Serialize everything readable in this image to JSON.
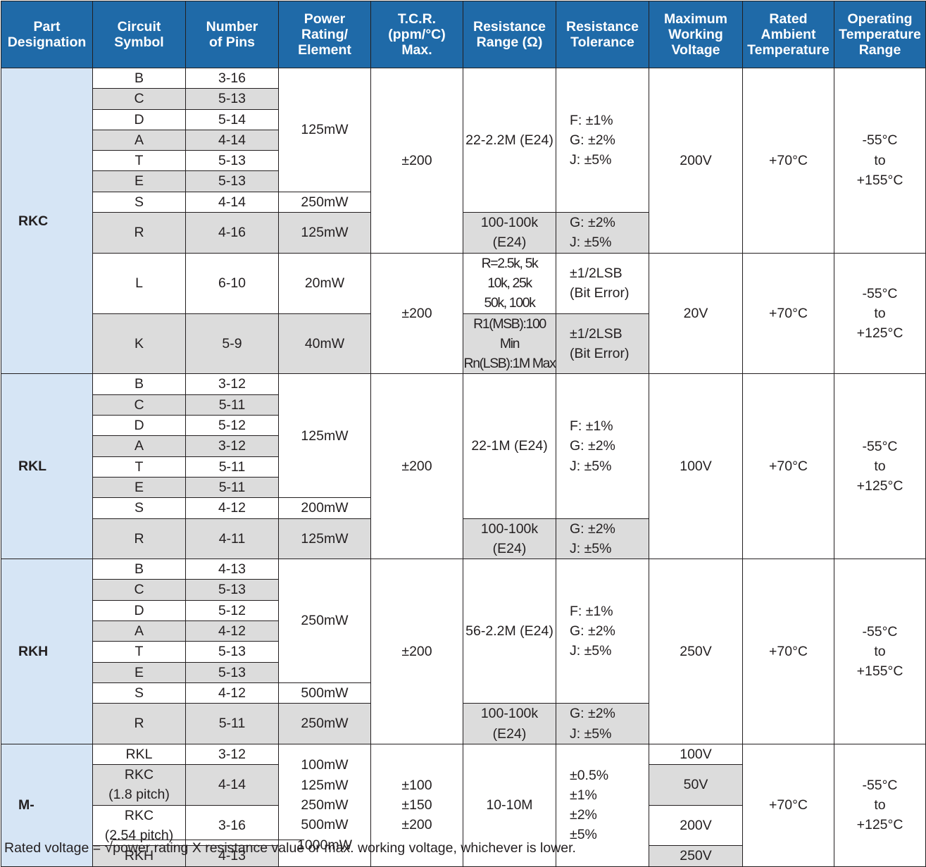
{
  "headers": [
    "Part\nDesignation",
    "Circuit\nSymbol",
    "Number\nof Pins",
    "Power\nRating/\nElement",
    "T.C.R.\n(ppm/°C)\nMax.",
    "Resistance\nRange (Ω)",
    "Resistance\nTolerance",
    "Maximum\nWorking\nVoltage",
    "Rated\nAmbient\nTemperature",
    "Operating\nTemperature\nRange"
  ],
  "rkc": {
    "part": "RKC",
    "rows": [
      {
        "symbol": "B",
        "pins": "3-16"
      },
      {
        "symbol": "C",
        "pins": "5-13"
      },
      {
        "symbol": "D",
        "pins": "5-14"
      },
      {
        "symbol": "A",
        "pins": "4-14"
      },
      {
        "symbol": "T",
        "pins": "5-13"
      },
      {
        "symbol": "E",
        "pins": "5-13"
      },
      {
        "symbol": "S",
        "pins": "4-14"
      },
      {
        "symbol": "R",
        "pins": "4-16"
      }
    ],
    "power_main": "125mW",
    "power_s": "250mW",
    "power_r": "125mW",
    "tcr": "±200",
    "range_main": "22-2.2M (E24)",
    "range_r": "100-100k (E24)",
    "tol_main": "F: ±1%\nG: ±2%\nJ: ±5%",
    "tol_r": "G: ±2%\nJ: ±5%",
    "voltage": "200V",
    "rated_temp": "+70°C",
    "op_range": "-55°C\nto\n+155°C",
    "l_symbol": "L",
    "l_pins": "6-10",
    "l_power": "20mW",
    "k_symbol": "K",
    "k_pins": "5-9",
    "k_power": "40mW",
    "lk_tcr": "±200",
    "l_range": "R=2.5k, 5k\n10k, 25k\n50k, 100k",
    "k_range": "R1(MSB):100 Min\nRn(LSB):1M Max",
    "l_tol": "±1/2LSB\n(Bit Error)",
    "k_tol": "±1/2LSB\n(Bit Error)",
    "lk_voltage": "20V",
    "lk_rated_temp": "+70°C",
    "lk_op_range": "-55°C\nto\n+125°C"
  },
  "rkl": {
    "part": "RKL",
    "rows": [
      {
        "symbol": "B",
        "pins": "3-12"
      },
      {
        "symbol": "C",
        "pins": "5-11"
      },
      {
        "symbol": "D",
        "pins": "5-12"
      },
      {
        "symbol": "A",
        "pins": "3-12"
      },
      {
        "symbol": "T",
        "pins": "5-11"
      },
      {
        "symbol": "E",
        "pins": "5-11"
      },
      {
        "symbol": "S",
        "pins": "4-12"
      },
      {
        "symbol": "R",
        "pins": "4-11"
      }
    ],
    "power_main": "125mW",
    "power_s": "200mW",
    "power_r": "125mW",
    "tcr": "±200",
    "range_main": "22-1M (E24)",
    "range_r": "100-100k (E24)",
    "tol_main": "F: ±1%\nG: ±2%\nJ: ±5%",
    "tol_r": "G: ±2%\nJ: ±5%",
    "voltage": "100V",
    "rated_temp": "+70°C",
    "op_range": "-55°C\nto\n+125°C"
  },
  "rkh": {
    "part": "RKH",
    "rows": [
      {
        "symbol": "B",
        "pins": "4-13"
      },
      {
        "symbol": "C",
        "pins": "5-13"
      },
      {
        "symbol": "D",
        "pins": "5-12"
      },
      {
        "symbol": "A",
        "pins": "4-12"
      },
      {
        "symbol": "T",
        "pins": "5-13"
      },
      {
        "symbol": "E",
        "pins": "5-13"
      },
      {
        "symbol": "S",
        "pins": "4-12"
      },
      {
        "symbol": "R",
        "pins": "5-11"
      }
    ],
    "power_main": "250mW",
    "power_s": "500mW",
    "power_r": "250mW",
    "tcr": "±200",
    "range_main": "56-2.2M (E24)",
    "range_r": "100-100k (E24)",
    "tol_main": "F: ±1%\nG: ±2%\nJ: ±5%",
    "tol_r": "G: ±2%\nJ: ±5%",
    "voltage": "250V",
    "rated_temp": "+70°C",
    "op_range": "-55°C\nto\n+155°C"
  },
  "m": {
    "part": "M-",
    "rows": [
      {
        "symbol": "RKL",
        "pins": "3-12",
        "voltage": "100V"
      },
      {
        "symbol": "RKC\n(1.8 pitch)",
        "pins": "4-14",
        "voltage": "50V"
      },
      {
        "symbol": "RKC\n(2.54 pitch)",
        "pins": "3-16",
        "voltage": "200V"
      },
      {
        "symbol": "RKH",
        "pins": "4-13",
        "voltage": "250V"
      }
    ],
    "power": "100mW\n125mW\n250mW\n500mW\n1000mW",
    "tcr": "±100\n±150\n±200",
    "range": "10-10M",
    "tol": "±0.5%\n±1%\n±2%\n±5%",
    "rated_temp": "+70°C",
    "op_range": "-55°C\nto\n+125°C"
  },
  "footnote": {
    "prefix": "Rated voltage = ",
    "root_sign": "√",
    "radicand": "power rating X resistance value",
    "suffix": " or max. working voltage, whichever is lower."
  },
  "colors": {
    "header_bg": "#1f6aa8",
    "part_bg": "#d6e5f5",
    "shade": "#dcdcdc"
  }
}
